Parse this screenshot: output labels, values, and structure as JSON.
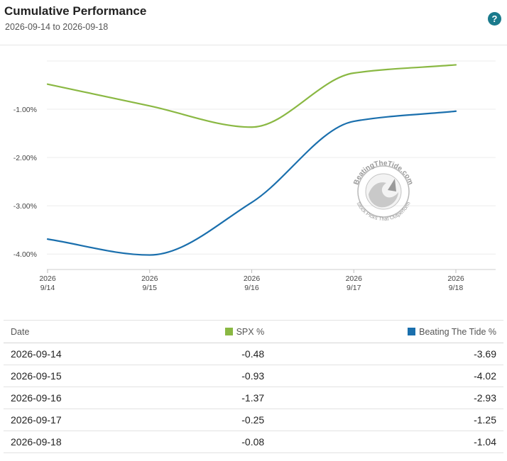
{
  "header": {
    "title": "Cumulative Performance",
    "subtitle": "2026-09-14 to 2026-09-18",
    "help_label": "?"
  },
  "watermark": {
    "top_text": "BeatingTheTide.com",
    "bottom_text": "Stock Picks That Outperform"
  },
  "chart_data": {
    "type": "line",
    "x": [
      "2026-09-14",
      "2026-09-15",
      "2026-09-16",
      "2026-09-17",
      "2026-09-18"
    ],
    "x_tick_labels": [
      [
        "2026",
        "9/14"
      ],
      [
        "2026",
        "9/15"
      ],
      [
        "2026",
        "9/16"
      ],
      [
        "2026",
        "9/17"
      ],
      [
        "2026",
        "9/18"
      ]
    ],
    "y_ticks": [
      -1.0,
      -2.0,
      -3.0,
      -4.0
    ],
    "y_tick_labels": [
      "-1.00%",
      "-2.00%",
      "-3.00%",
      "-4.00%"
    ],
    "ylim": [
      -4.32,
      0.0
    ],
    "grid": true,
    "series": [
      {
        "name": "SPX %",
        "color": "#8ab843",
        "values": [
          -0.48,
          -0.93,
          -1.37,
          -0.25,
          -0.08
        ]
      },
      {
        "name": "Beating The Tide %",
        "color": "#1a6fad",
        "values": [
          -3.69,
          -4.02,
          -2.93,
          -1.25,
          -1.04
        ]
      }
    ]
  },
  "table": {
    "columns": [
      {
        "label": "Date"
      },
      {
        "label": "SPX %",
        "color": "#8ab843"
      },
      {
        "label": "Beating The Tide %",
        "color": "#1a6fad"
      }
    ],
    "rows": [
      [
        "2026-09-14",
        "-0.48",
        "-3.69"
      ],
      [
        "2026-09-15",
        "-0.93",
        "-4.02"
      ],
      [
        "2026-09-16",
        "-1.37",
        "-2.93"
      ],
      [
        "2026-09-17",
        "-0.25",
        "-1.25"
      ],
      [
        "2026-09-18",
        "-0.08",
        "-1.04"
      ]
    ]
  }
}
